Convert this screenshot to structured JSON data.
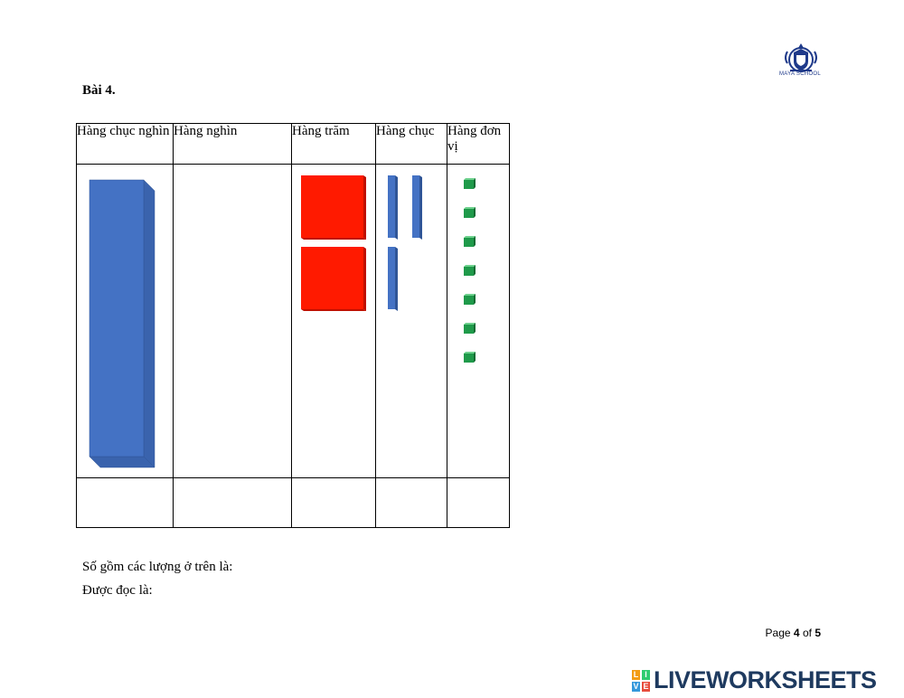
{
  "header": {
    "school_name": "MAYA SCHOOL"
  },
  "exercise": {
    "title": "Bài 4."
  },
  "place_value_table": {
    "columns": [
      {
        "label": "Hàng chục nghìn",
        "blocks": 1
      },
      {
        "label": "Hàng nghìn",
        "blocks": 0
      },
      {
        "label": "Hàng trăm",
        "blocks": 2
      },
      {
        "label": "Hàng chục",
        "blocks": 3
      },
      {
        "label": "Hàng đơn vị",
        "blocks": 7
      }
    ],
    "answers": [
      "",
      "",
      "",
      "",
      ""
    ],
    "colors": {
      "ten_thousand": "#4472c4",
      "hundred": "#ff1a00",
      "ten": "#4472c4",
      "unit": "#1f9a4a"
    }
  },
  "questions": {
    "number_label": "Số gồm các lượng ở trên là:",
    "reading_label": "Được đọc là:"
  },
  "footer": {
    "page_prefix": "Page",
    "page_current": "4",
    "page_of": "of",
    "page_total": "5",
    "brand": "LIVEWORKSHEETS",
    "brand_letters": [
      "L",
      "I",
      "V",
      "E"
    ],
    "brand_colors": [
      "#f39c12",
      "#2ecc71",
      "#3498db",
      "#e74c3c"
    ]
  }
}
